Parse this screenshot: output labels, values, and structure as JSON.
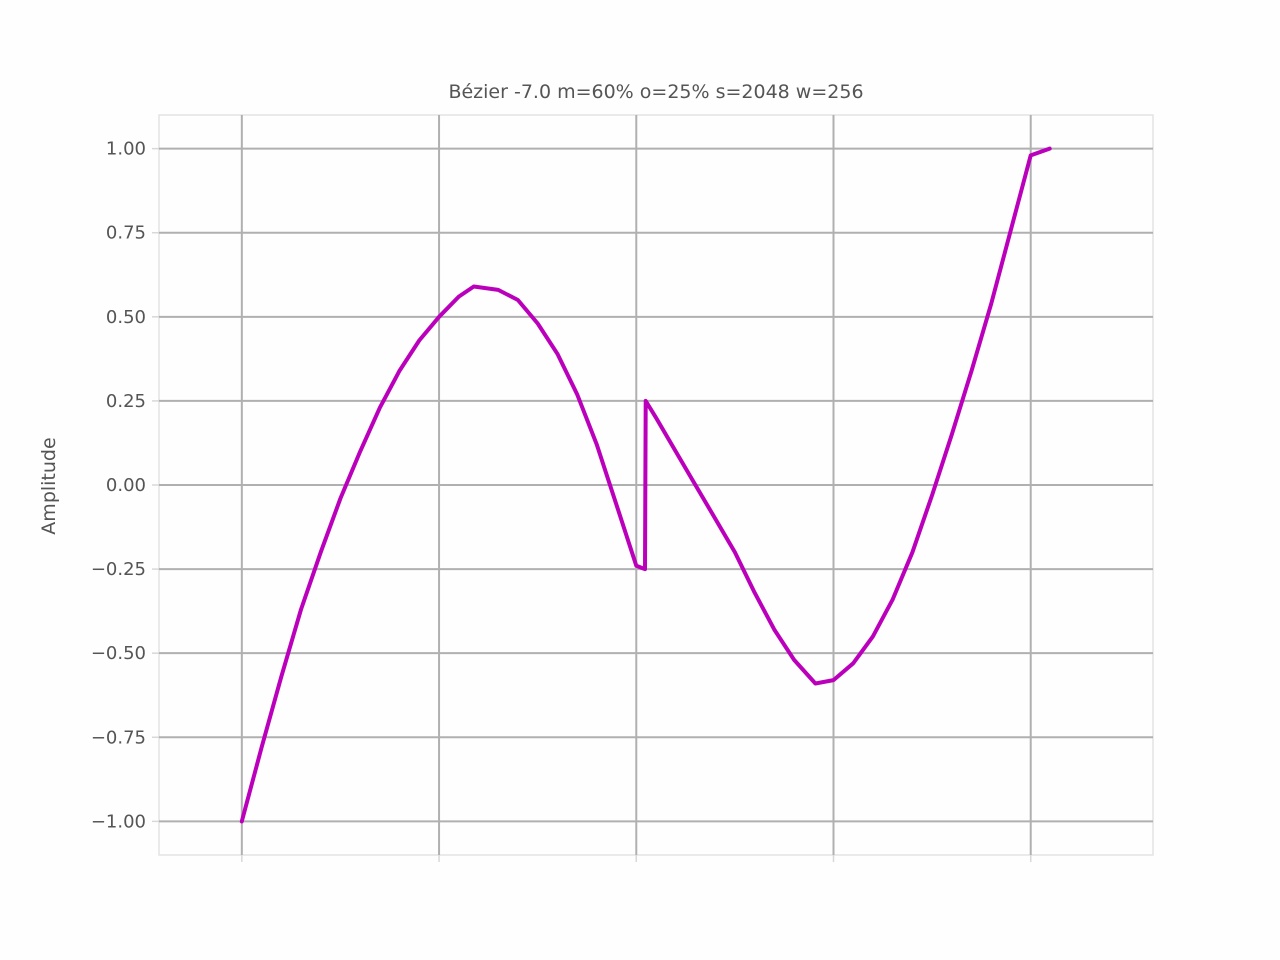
{
  "chart_data": {
    "type": "line",
    "title": "Bézier -7.0 m=60% o=25% s=2048 w=256",
    "xlabel": "",
    "ylabel": "Amplitude",
    "xlim": [
      -0.105,
      1.155
    ],
    "ylim": [
      -1.1,
      1.1
    ],
    "x_grid": [
      0,
      0.25,
      0.5,
      0.75,
      1.0
    ],
    "yticks": [
      1.0,
      0.75,
      0.5,
      0.25,
      0.0,
      -0.25,
      -0.5,
      -0.75,
      -1.0
    ],
    "ytick_labels": [
      "1.00",
      "0.75",
      "0.50",
      "0.25",
      "0.00",
      "−0.25",
      "−0.50",
      "−0.75",
      "−1.00"
    ],
    "grid": true,
    "series": [
      {
        "color": "#bb00bb",
        "x": [
          0,
          0.025,
          0.05,
          0.075,
          0.1,
          0.125,
          0.15,
          0.175,
          0.2,
          0.225,
          0.25,
          0.275,
          0.294,
          0.325,
          0.35,
          0.375,
          0.4,
          0.425,
          0.45,
          0.475,
          0.5,
          0.511,
          0.512,
          0.525,
          0.55,
          0.575,
          0.6,
          0.625,
          0.65,
          0.675,
          0.7,
          0.727,
          0.75,
          0.775,
          0.8,
          0.825,
          0.85,
          0.875,
          0.9,
          0.925,
          0.95,
          0.975,
          1.0,
          1.024
        ],
        "y": [
          -1.0,
          -0.78,
          -0.57,
          -0.37,
          -0.2,
          -0.04,
          0.1,
          0.23,
          0.34,
          0.43,
          0.5,
          0.56,
          0.59,
          0.58,
          0.55,
          0.48,
          0.39,
          0.27,
          0.12,
          -0.06,
          -0.24,
          -0.25,
          0.25,
          0.2,
          0.1,
          0.0,
          -0.1,
          -0.2,
          -0.32,
          -0.43,
          -0.52,
          -0.59,
          -0.58,
          -0.53,
          -0.45,
          -0.34,
          -0.2,
          -0.03,
          0.15,
          0.34,
          0.54,
          0.76,
          0.98,
          1.0
        ]
      }
    ]
  }
}
